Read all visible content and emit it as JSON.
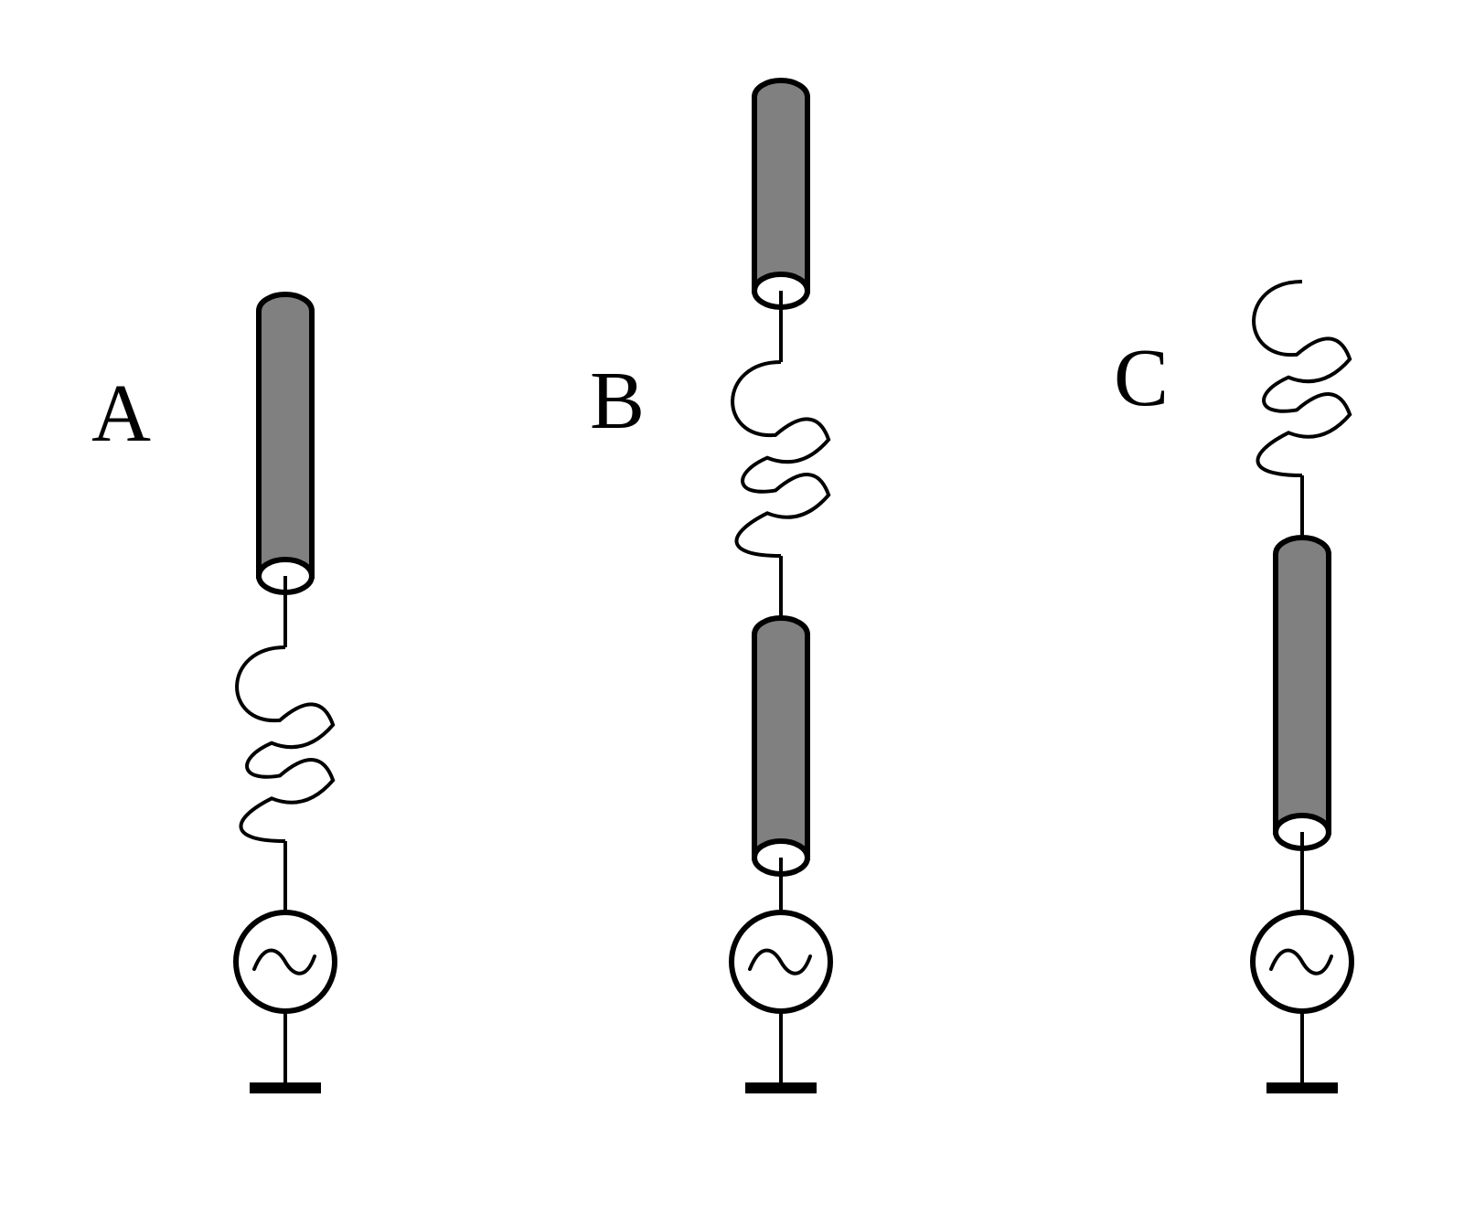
{
  "colors": {
    "background": "#ffffff",
    "stroke": "#000000",
    "rod_fill": "#808080",
    "rod_end_fill": "#ffffff"
  },
  "panels": [
    {
      "id": "a",
      "label": "A",
      "components_top_to_bottom": [
        "rod",
        "coil",
        "ac-source",
        "ground"
      ]
    },
    {
      "id": "b",
      "label": "B",
      "components_top_to_bottom": [
        "rod",
        "coil",
        "rod",
        "ac-source",
        "ground"
      ]
    },
    {
      "id": "c",
      "label": "C",
      "components_top_to_bottom": [
        "coil",
        "rod",
        "ac-source",
        "ground"
      ]
    }
  ]
}
